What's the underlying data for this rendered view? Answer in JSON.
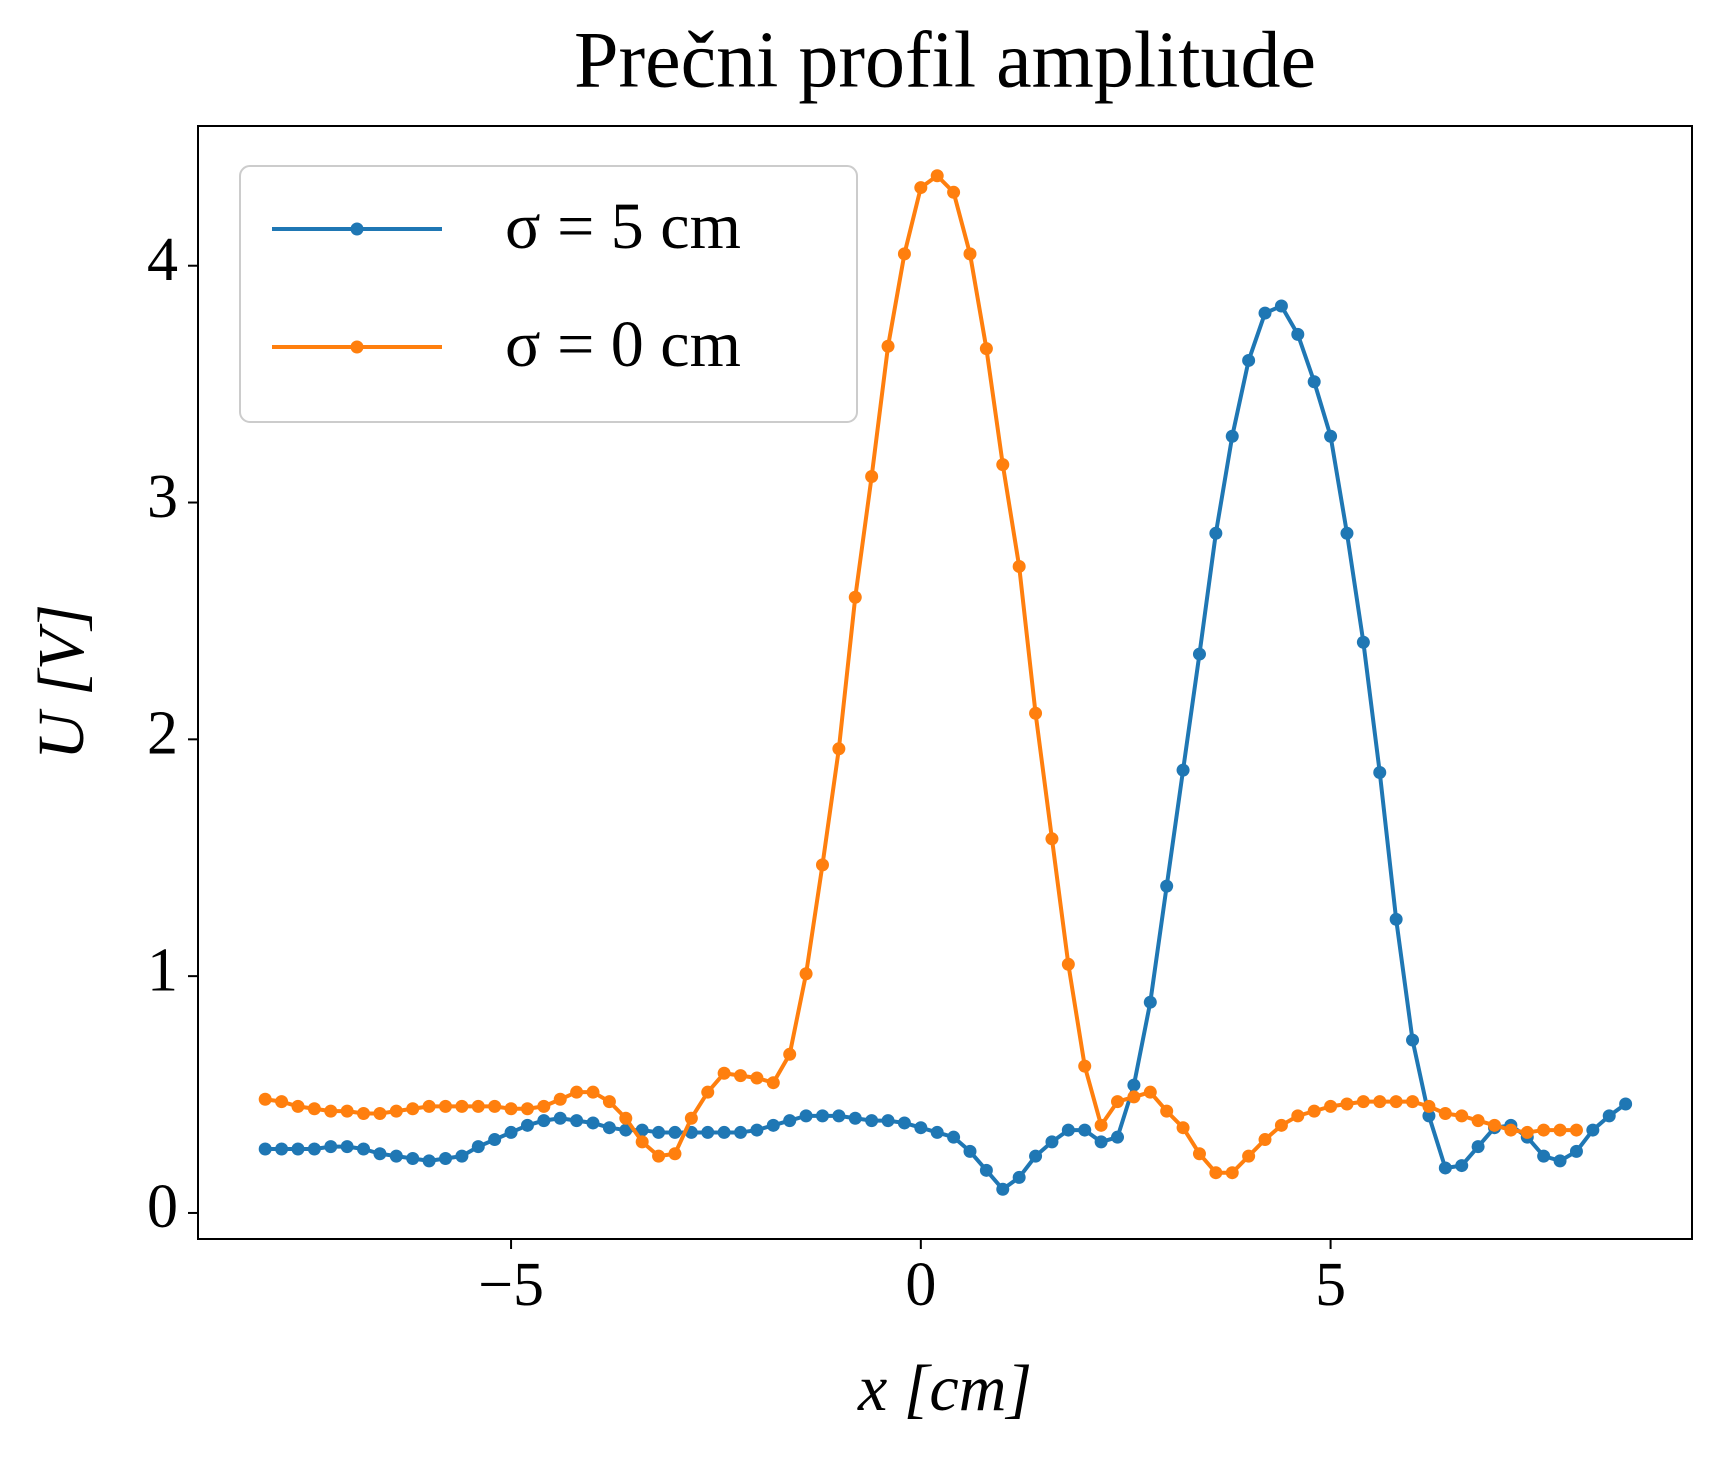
{
  "chart_data": {
    "type": "line",
    "title": "Prečni profil amplitude",
    "x_label": "x [cm]",
    "y_label": "U [V]",
    "xlim": [
      -8.82,
      9.41
    ],
    "ylim": [
      -0.11,
      4.59
    ],
    "xticks": [
      {
        "value": -5,
        "label": "−5"
      },
      0,
      5
    ],
    "yticks": [
      0,
      1,
      2,
      3,
      4
    ],
    "legend": "upper left",
    "series": [
      {
        "name": "σ = 5 cm",
        "color": "#1f77b4",
        "x": [
          -8,
          -7.8,
          -7.6,
          -7.4,
          -7.2,
          -7,
          -6.8,
          -6.6,
          -6.4,
          -6.2,
          -6,
          -5.8,
          -5.6,
          -5.4,
          -5.2,
          -5,
          -4.8,
          -4.6,
          -4.4,
          -4.2,
          -4,
          -3.8,
          -3.6,
          -3.4,
          -3.2,
          -3,
          -2.8,
          -2.6,
          -2.4,
          -2.2,
          -2,
          -1.8,
          -1.6,
          -1.4,
          -1.2,
          -1,
          -0.8,
          -0.6,
          -0.4,
          -0.2,
          0,
          0.2,
          0.4,
          0.6,
          0.8,
          1,
          1.2,
          1.4,
          1.6,
          1.8,
          2,
          2.2,
          2.4,
          2.6,
          2.8,
          3,
          3.2,
          3.4,
          3.6,
          3.8,
          4,
          4.2,
          4.4,
          4.6,
          4.8,
          5,
          5.2,
          5.4,
          5.6,
          5.8,
          6,
          6.2,
          6.4,
          6.6,
          6.8,
          7,
          7.2,
          7.4,
          7.6,
          7.8,
          8,
          8.2,
          8.4,
          8.6
        ],
        "values": [
          0.27,
          0.27,
          0.27,
          0.27,
          0.28,
          0.28,
          0.27,
          0.25,
          0.24,
          0.23,
          0.22,
          0.23,
          0.24,
          0.28,
          0.31,
          0.34,
          0.37,
          0.39,
          0.4,
          0.39,
          0.38,
          0.36,
          0.35,
          0.35,
          0.34,
          0.34,
          0.34,
          0.34,
          0.34,
          0.34,
          0.35,
          0.37,
          0.39,
          0.41,
          0.41,
          0.41,
          0.4,
          0.39,
          0.39,
          0.38,
          0.36,
          0.34,
          0.32,
          0.26,
          0.18,
          0.1,
          0.15,
          0.24,
          0.3,
          0.35,
          0.35,
          0.3,
          0.32,
          0.54,
          0.89,
          1.38,
          1.87,
          2.36,
          2.87,
          3.28,
          3.6,
          3.8,
          3.83,
          3.71,
          3.51,
          3.28,
          2.87,
          2.41,
          1.86,
          1.24,
          0.73,
          0.41,
          0.19,
          0.2,
          0.28,
          0.36,
          0.37,
          0.32,
          0.24,
          0.22,
          0.26,
          0.35,
          0.41,
          0.46
        ]
      },
      {
        "name": "σ = 0 cm",
        "color": "#ff7f0e",
        "x": [
          -8,
          -7.8,
          -7.6,
          -7.4,
          -7.2,
          -7,
          -6.8,
          -6.6,
          -6.4,
          -6.2,
          -6,
          -5.8,
          -5.6,
          -5.4,
          -5.2,
          -5,
          -4.8,
          -4.6,
          -4.4,
          -4.2,
          -4,
          -3.8,
          -3.6,
          -3.4,
          -3.2,
          -3,
          -2.8,
          -2.6,
          -2.4,
          -2.2,
          -2,
          -1.8,
          -1.6,
          -1.4,
          -1.2,
          -1,
          -0.8,
          -0.6,
          -0.4,
          -0.2,
          0,
          0.2,
          0.4,
          0.6,
          0.8,
          1,
          1.2,
          1.4,
          1.6,
          1.8,
          2,
          2.2,
          2.4,
          2.6,
          2.8,
          3,
          3.2,
          3.4,
          3.6,
          3.8,
          4,
          4.2,
          4.4,
          4.6,
          4.8,
          5,
          5.2,
          5.4,
          5.6,
          5.8,
          6,
          6.2,
          6.4,
          6.6,
          6.8,
          7,
          7.2,
          7.4,
          7.6,
          7.8,
          8
        ],
        "values": [
          0.48,
          0.47,
          0.45,
          0.44,
          0.43,
          0.43,
          0.42,
          0.42,
          0.43,
          0.44,
          0.45,
          0.45,
          0.45,
          0.45,
          0.45,
          0.44,
          0.44,
          0.45,
          0.48,
          0.51,
          0.51,
          0.47,
          0.4,
          0.3,
          0.24,
          0.25,
          0.4,
          0.51,
          0.59,
          0.58,
          0.57,
          0.55,
          0.67,
          1.01,
          1.47,
          1.96,
          2.6,
          3.11,
          3.66,
          4.05,
          4.33,
          4.38,
          4.31,
          4.05,
          3.65,
          3.16,
          2.73,
          2.11,
          1.58,
          1.05,
          0.62,
          0.37,
          0.47,
          0.49,
          0.51,
          0.43,
          0.36,
          0.25,
          0.17,
          0.17,
          0.24,
          0.31,
          0.37,
          0.41,
          0.43,
          0.45,
          0.46,
          0.47,
          0.47,
          0.47,
          0.47,
          0.45,
          0.42,
          0.41,
          0.39,
          0.37,
          0.35,
          0.34,
          0.35,
          0.35,
          0.35
        ]
      }
    ]
  }
}
